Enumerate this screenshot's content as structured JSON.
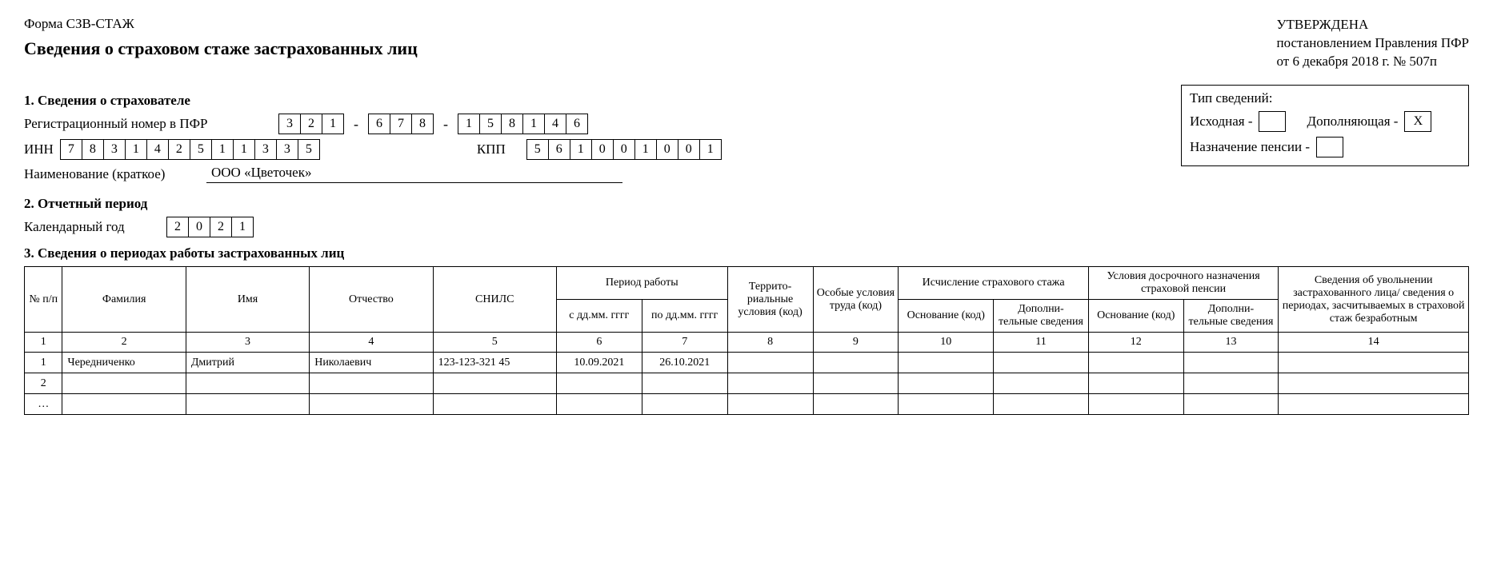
{
  "header": {
    "form_name": "Форма СЗВ-СТАЖ",
    "approved_line1": "УТВЕРЖДЕНА",
    "approved_line2": "постановлением Правления ПФР",
    "approved_line3": "от 6 декабря 2018 г. № 507п",
    "title": "Сведения о страховом стаже застрахованных лиц"
  },
  "section1": {
    "heading": "1. Сведения о страхователе",
    "reg_label": "Регистрационный номер в ПФР",
    "reg_parts": [
      [
        "3",
        "2",
        "1"
      ],
      [
        "6",
        "7",
        "8"
      ],
      [
        "1",
        "5",
        "8",
        "1",
        "4",
        "6"
      ]
    ],
    "inn_label": "ИНН",
    "inn": [
      "7",
      "8",
      "3",
      "1",
      "4",
      "2",
      "5",
      "1",
      "1",
      "3",
      "3",
      "5"
    ],
    "kpp_label": "КПП",
    "kpp": [
      "5",
      "6",
      "1",
      "0",
      "0",
      "1",
      "0",
      "0",
      "1"
    ],
    "name_label": "Наименование (краткое)",
    "name_value": "ООО «Цветочек»"
  },
  "type_info": {
    "title": "Тип сведений:",
    "initial_label": "Исходная -",
    "initial_value": "",
    "supplement_label": "Дополняющая -",
    "supplement_value": "Х",
    "pension_label": "Назначение пенсии -",
    "pension_value": ""
  },
  "section2": {
    "heading": "2. Отчетный период",
    "year_label": "Календарный год",
    "year": [
      "2",
      "0",
      "2",
      "1"
    ]
  },
  "section3": {
    "heading": "3. Сведения о периодах работы застрахованных лиц",
    "columns": {
      "npp": "№\nп/п",
      "fam": "Фамилия",
      "name": "Имя",
      "pat": "Отчество",
      "snils": "СНИЛС",
      "period": "Период работы",
      "date_from": "с дд.мм.\nгггг",
      "date_to": "по дд.мм.\nгггг",
      "terr": "Террито-\nриальные\nусловия\n(код)",
      "osob": "Особые\nусловия\nтруда (код)",
      "isch": "Исчисление страхового\nстажа",
      "dosr": "Условия досрочного\nназначения страховой\nпенсии",
      "osn": "Основание\n(код)",
      "dop": "Дополни-\nтельные\nсведения",
      "last": "Сведения об увольнении\nзастрахованного лица/\nсведения о периодах,\nзасчитываемых\nв страховой стаж\nбезработным"
    },
    "col_numbers": [
      "1",
      "2",
      "3",
      "4",
      "5",
      "6",
      "7",
      "8",
      "9",
      "10",
      "11",
      "12",
      "13",
      "14"
    ],
    "rows": [
      {
        "n": "1",
        "fam": "Чередниченко",
        "name": "Дмитрий",
        "pat": "Николаевич",
        "snils": "123-123-321 45",
        "from": "10.09.2021",
        "to": "26.10.2021",
        "terr": "",
        "osob": "",
        "osn1": "",
        "dop1": "",
        "osn2": "",
        "dop2": "",
        "last": ""
      },
      {
        "n": "2",
        "fam": "",
        "name": "",
        "pat": "",
        "snils": "",
        "from": "",
        "to": "",
        "terr": "",
        "osob": "",
        "osn1": "",
        "dop1": "",
        "osn2": "",
        "dop2": "",
        "last": ""
      },
      {
        "n": "…",
        "fam": "",
        "name": "",
        "pat": "",
        "snils": "",
        "from": "",
        "to": "",
        "terr": "",
        "osob": "",
        "osn1": "",
        "dop1": "",
        "osn2": "",
        "dop2": "",
        "last": ""
      }
    ]
  }
}
